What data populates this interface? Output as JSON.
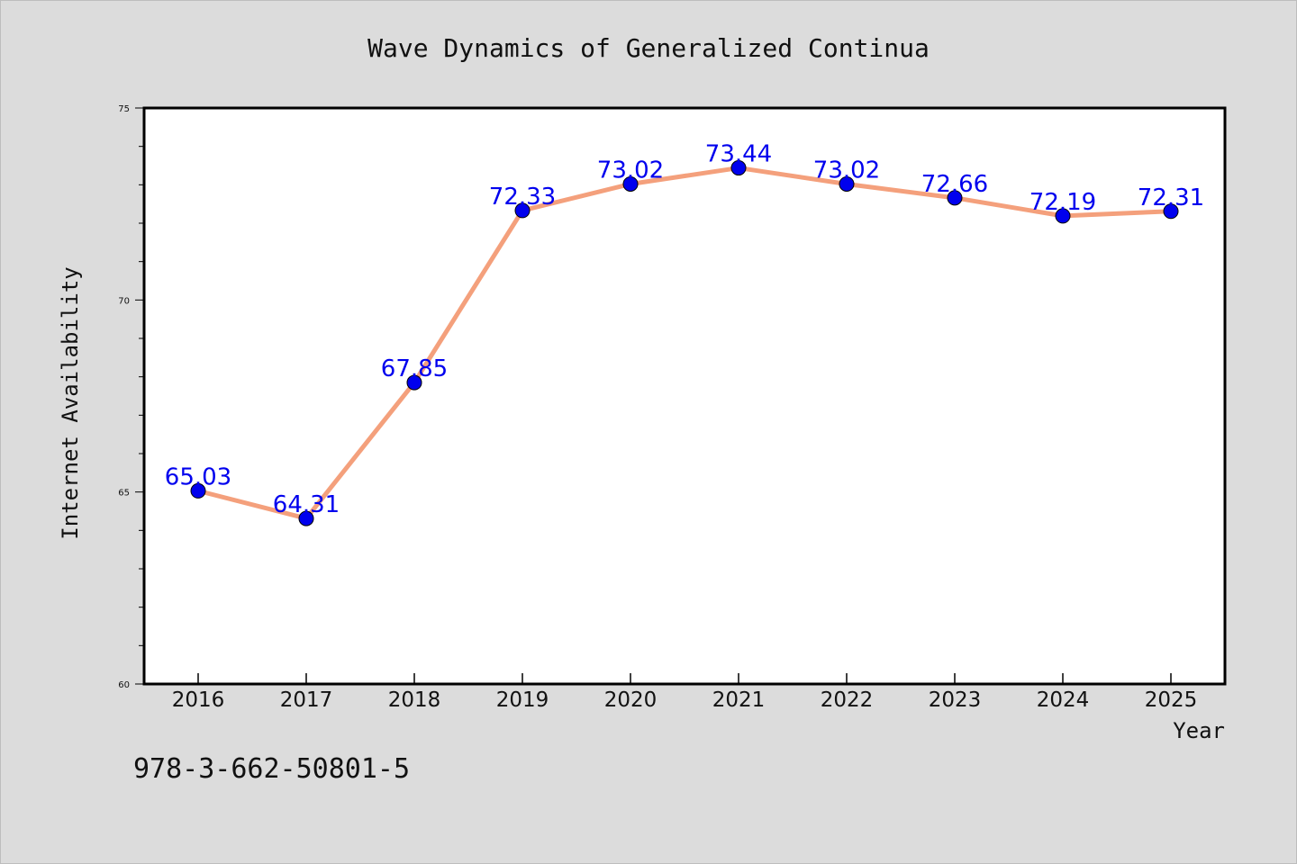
{
  "chart_data": {
    "type": "line",
    "title": "Wave Dynamics of Generalized Continua",
    "xlabel": "Year",
    "ylabel": "Internet Availability",
    "categories": [
      "2016",
      "2017",
      "2018",
      "2019",
      "2020",
      "2021",
      "2022",
      "2023",
      "2024",
      "2025"
    ],
    "series": [
      {
        "values": [
          65.03,
          64.31,
          67.85,
          72.33,
          73.02,
          73.44,
          73.02,
          72.66,
          72.19,
          72.31
        ],
        "data_labels": [
          "65.03",
          "64.31",
          "67.85",
          "72.33",
          "73.02",
          "73.44",
          "73.02",
          "72.66",
          "72.19",
          "72.31"
        ],
        "line_color": "#f4a07c",
        "marker_color": "#0000ee"
      }
    ],
    "ylim": [
      60,
      75
    ],
    "yticks": [
      "60",
      "65",
      "70",
      "75"
    ],
    "grid": false,
    "legend": "none",
    "label_color": "#0000ee"
  },
  "footer": {
    "isbn": "978-3-662-50801-5"
  }
}
